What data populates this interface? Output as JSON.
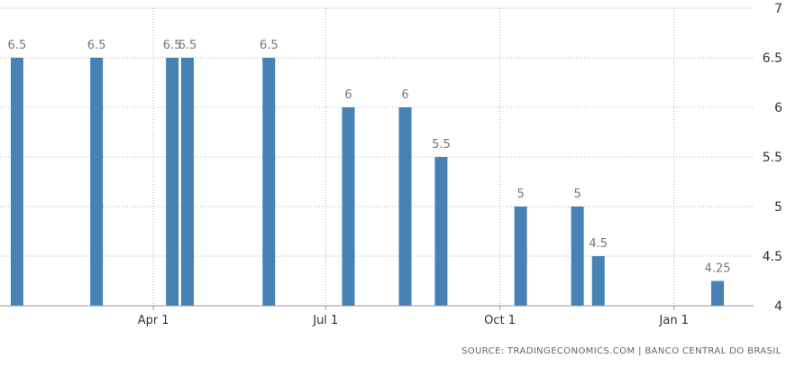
{
  "chart_data": {
    "type": "bar",
    "x_axis_type": "date",
    "xlim": [
      "2016-01-11",
      "2017-02-12"
    ],
    "ylim": [
      4,
      7
    ],
    "y_ticks": [
      4,
      4.5,
      5,
      5.5,
      6,
      6.5,
      7
    ],
    "y_tick_labels": [
      "4",
      "4.5",
      "5",
      "5.5",
      "6",
      "6.5",
      "7"
    ],
    "x_ticks": [
      {
        "date": "2016-04-01",
        "label": "Apr 1"
      },
      {
        "date": "2016-07-01",
        "label": "Jul 1"
      },
      {
        "date": "2016-10-01",
        "label": "Oct 1"
      },
      {
        "date": "2017-01-01",
        "label": "Jan 1"
      }
    ],
    "grid": true,
    "grid_style": "dotted",
    "y_axis_position": "right",
    "bar_color": "#4682b4",
    "points": [
      {
        "date": "2016-01-20",
        "value": 6.5,
        "label": "6.5"
      },
      {
        "date": "2016-03-02",
        "value": 6.5,
        "label": "6.5"
      },
      {
        "date": "2016-04-11",
        "value": 6.5,
        "label": "6.5"
      },
      {
        "date": "2016-04-19",
        "value": 6.5,
        "label": "6.5"
      },
      {
        "date": "2016-06-01",
        "value": 6.5,
        "label": "6.5"
      },
      {
        "date": "2016-07-13",
        "value": 6,
        "label": "6"
      },
      {
        "date": "2016-08-12",
        "value": 6,
        "label": "6"
      },
      {
        "date": "2016-08-31",
        "value": 5.5,
        "label": "5.5"
      },
      {
        "date": "2016-10-12",
        "value": 5,
        "label": "5"
      },
      {
        "date": "2016-11-11",
        "value": 5,
        "label": "5"
      },
      {
        "date": "2016-11-22",
        "value": 4.5,
        "label": "4.5"
      },
      {
        "date": "2017-01-24",
        "value": 4.25,
        "label": "4.25"
      }
    ]
  },
  "source": "SOURCE: TRADINGECONOMICS.COM | BANCO CENTRAL DO BRASIL"
}
